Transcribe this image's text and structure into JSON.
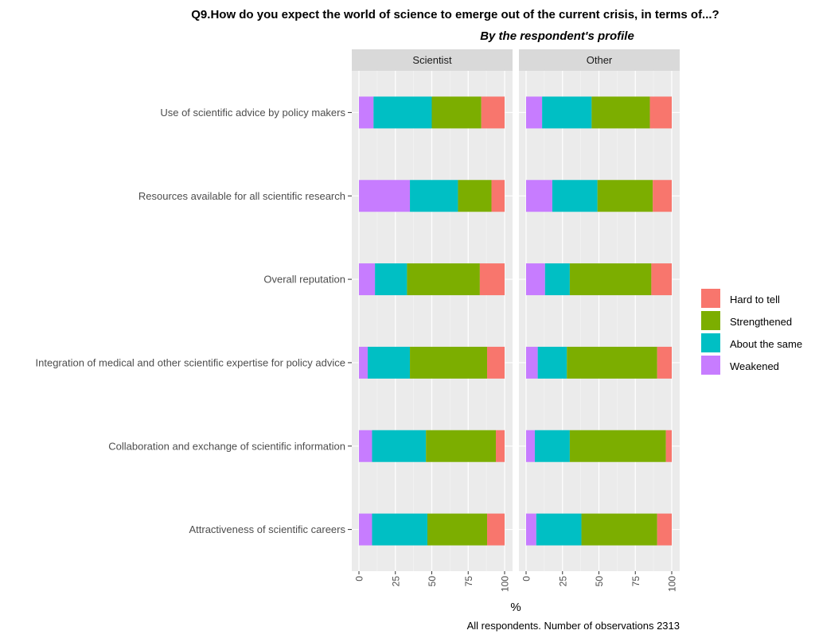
{
  "title": "Q9.How do you expect the world of science to emerge out of the current crisis, in terms of...?",
  "subtitle": "By the respondent's profile",
  "caption": "All respondents. Number of observations 2313",
  "chart_data": {
    "type": "bar",
    "orientation": "horizontal",
    "stacked": true,
    "xlabel": "%",
    "xlim": [
      0,
      100
    ],
    "x_ticks": [
      "0",
      "25",
      "50",
      "75",
      "100"
    ],
    "grid": true,
    "legend_position": "right",
    "categories": [
      "Use of scientific advice by policy makers",
      "Resources available for all scientific research",
      "Overall reputation",
      "Integration of medical and other scientific expertise for policy advice",
      "Collaboration and exchange of scientific information",
      "Attractiveness of scientific careers"
    ],
    "stack_order": [
      "Weakened",
      "About the same",
      "Strengthened",
      "Hard to tell"
    ],
    "legend": [
      {
        "name": "Hard to tell",
        "color": "#F8766D"
      },
      {
        "name": "Strengthened",
        "color": "#7CAE00"
      },
      {
        "name": "About the same",
        "color": "#00BFC4"
      },
      {
        "name": "Weakened",
        "color": "#C77CFF"
      }
    ],
    "panels": [
      {
        "name": "Scientist",
        "series": [
          {
            "name": "Weakened",
            "values": [
              10,
              35,
              11,
              6,
              9,
              9
            ]
          },
          {
            "name": "About the same",
            "values": [
              40,
              33,
              22,
              29,
              37,
              38
            ]
          },
          {
            "name": "Strengthened",
            "values": [
              34,
              23,
              50,
              53,
              48,
              41
            ]
          },
          {
            "name": "Hard to tell",
            "values": [
              16,
              9,
              17,
              12,
              6,
              12
            ]
          }
        ]
      },
      {
        "name": "Other",
        "series": [
          {
            "name": "Weakened",
            "values": [
              11,
              18,
              13,
              8,
              6,
              7
            ]
          },
          {
            "name": "About the same",
            "values": [
              34,
              31,
              17,
              20,
              24,
              31
            ]
          },
          {
            "name": "Strengthened",
            "values": [
              40,
              38,
              56,
              62,
              66,
              52
            ]
          },
          {
            "name": "Hard to tell",
            "values": [
              15,
              13,
              14,
              10,
              4,
              10
            ]
          }
        ]
      }
    ]
  }
}
